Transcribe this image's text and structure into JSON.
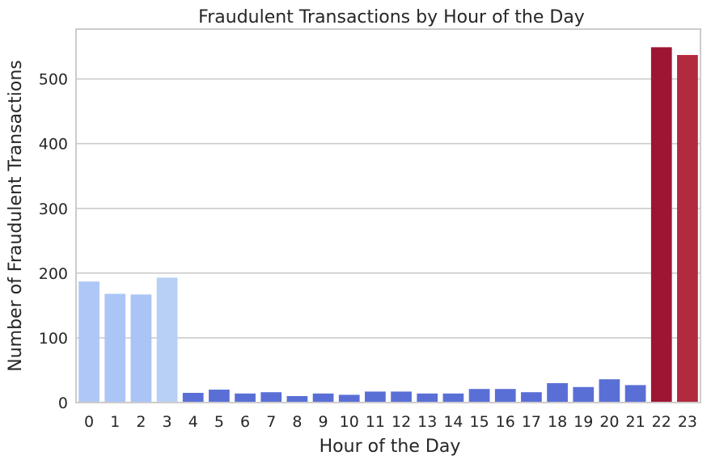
{
  "chart_data": {
    "type": "bar",
    "title": "Fraudulent Transactions by Hour of the Day",
    "xlabel": "Hour of the Day",
    "ylabel": "Number of Fraudulent Transactions",
    "categories": [
      "0",
      "1",
      "2",
      "3",
      "4",
      "5",
      "6",
      "7",
      "8",
      "9",
      "10",
      "11",
      "12",
      "13",
      "14",
      "15",
      "16",
      "17",
      "18",
      "19",
      "20",
      "21",
      "22",
      "23"
    ],
    "values": [
      187,
      168,
      167,
      193,
      15,
      20,
      14,
      16,
      10,
      14,
      12,
      17,
      17,
      14,
      14,
      21,
      21,
      16,
      30,
      24,
      36,
      27,
      549,
      537
    ],
    "colors": [
      "#aec7f6",
      "#abc5f6",
      "#aac4f6",
      "#b9d0f5",
      "#5a6fd6",
      "#5a6fd6",
      "#5a6fd6",
      "#5a6fd6",
      "#5a6fd6",
      "#5a6fd6",
      "#5a6fd6",
      "#5a6fd6",
      "#5a6fd6",
      "#5a6fd6",
      "#5a6fd6",
      "#5a6fd6",
      "#5a6fd6",
      "#5a6fd6",
      "#5a6fd6",
      "#5a6fd6",
      "#5a6fd6",
      "#5a6fd6",
      "#9e1433",
      "#b22a3d"
    ],
    "yticks": [
      0,
      100,
      200,
      300,
      400,
      500
    ],
    "ylim": [
      0,
      577
    ],
    "grid": true,
    "legend": "none"
  }
}
